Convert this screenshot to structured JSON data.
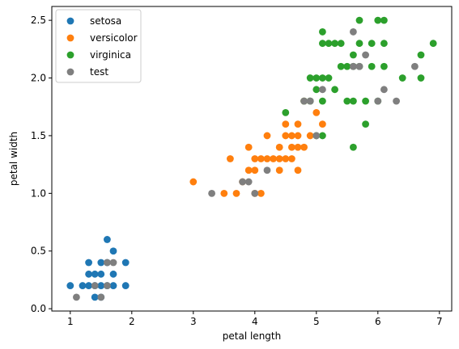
{
  "chart_data": {
    "type": "scatter",
    "title": "",
    "xlabel": "petal length",
    "ylabel": "petal width",
    "xlim": [
      0.7,
      7.2
    ],
    "ylim": [
      -0.02,
      2.62
    ],
    "xticks": [
      1,
      2,
      3,
      4,
      5,
      6,
      7
    ],
    "xtick_labels": [
      "1",
      "2",
      "3",
      "4",
      "5",
      "6",
      "7"
    ],
    "yticks": [
      0.0,
      0.5,
      1.0,
      1.5,
      2.0,
      2.5
    ],
    "ytick_labels": [
      "0.0",
      "0.5",
      "1.0",
      "1.5",
      "2.0",
      "2.5"
    ],
    "grid": false,
    "legend_position": "top-left",
    "series": [
      {
        "name": "setosa",
        "color": "#1f77b4",
        "points": [
          [
            1.0,
            0.2
          ],
          [
            1.2,
            0.2
          ],
          [
            1.3,
            0.2
          ],
          [
            1.3,
            0.3
          ],
          [
            1.3,
            0.4
          ],
          [
            1.4,
            0.1
          ],
          [
            1.4,
            0.2
          ],
          [
            1.4,
            0.3
          ],
          [
            1.5,
            0.1
          ],
          [
            1.5,
            0.2
          ],
          [
            1.5,
            0.3
          ],
          [
            1.5,
            0.4
          ],
          [
            1.6,
            0.2
          ],
          [
            1.6,
            0.4
          ],
          [
            1.6,
            0.6
          ],
          [
            1.7,
            0.2
          ],
          [
            1.7,
            0.3
          ],
          [
            1.7,
            0.5
          ],
          [
            1.9,
            0.2
          ],
          [
            1.9,
            0.4
          ]
        ]
      },
      {
        "name": "versicolor",
        "color": "#ff7f0e",
        "points": [
          [
            3.0,
            1.1
          ],
          [
            3.5,
            1.0
          ],
          [
            3.6,
            1.3
          ],
          [
            3.7,
            1.0
          ],
          [
            3.8,
            1.1
          ],
          [
            3.9,
            1.2
          ],
          [
            3.9,
            1.4
          ],
          [
            4.0,
            1.0
          ],
          [
            4.0,
            1.2
          ],
          [
            4.0,
            1.3
          ],
          [
            4.1,
            1.0
          ],
          [
            4.1,
            1.3
          ],
          [
            4.2,
            1.3
          ],
          [
            4.2,
            1.5
          ],
          [
            4.3,
            1.3
          ],
          [
            4.4,
            1.2
          ],
          [
            4.4,
            1.3
          ],
          [
            4.4,
            1.4
          ],
          [
            4.5,
            1.3
          ],
          [
            4.5,
            1.5
          ],
          [
            4.5,
            1.6
          ],
          [
            4.6,
            1.3
          ],
          [
            4.6,
            1.4
          ],
          [
            4.6,
            1.5
          ],
          [
            4.7,
            1.2
          ],
          [
            4.7,
            1.4
          ],
          [
            4.7,
            1.5
          ],
          [
            4.7,
            1.6
          ],
          [
            4.8,
            1.4
          ],
          [
            4.8,
            1.8
          ],
          [
            4.9,
            1.5
          ],
          [
            5.0,
            1.7
          ],
          [
            5.1,
            1.6
          ]
        ]
      },
      {
        "name": "virginica",
        "color": "#2ca02c",
        "points": [
          [
            4.5,
            1.7
          ],
          [
            4.8,
            1.8
          ],
          [
            4.9,
            1.8
          ],
          [
            4.9,
            2.0
          ],
          [
            5.0,
            1.5
          ],
          [
            5.0,
            1.9
          ],
          [
            5.0,
            2.0
          ],
          [
            5.1,
            1.5
          ],
          [
            5.1,
            1.8
          ],
          [
            5.1,
            2.0
          ],
          [
            5.1,
            2.3
          ],
          [
            5.1,
            2.4
          ],
          [
            5.2,
            2.0
          ],
          [
            5.2,
            2.3
          ],
          [
            5.3,
            1.9
          ],
          [
            5.3,
            2.3
          ],
          [
            5.4,
            2.1
          ],
          [
            5.4,
            2.3
          ],
          [
            5.5,
            1.8
          ],
          [
            5.5,
            2.1
          ],
          [
            5.6,
            1.4
          ],
          [
            5.6,
            1.8
          ],
          [
            5.6,
            2.1
          ],
          [
            5.6,
            2.2
          ],
          [
            5.7,
            2.1
          ],
          [
            5.7,
            2.3
          ],
          [
            5.7,
            2.5
          ],
          [
            5.8,
            1.6
          ],
          [
            5.8,
            1.8
          ],
          [
            5.9,
            2.1
          ],
          [
            5.9,
            2.3
          ],
          [
            6.0,
            1.8
          ],
          [
            6.0,
            2.5
          ],
          [
            6.1,
            2.1
          ],
          [
            6.1,
            2.3
          ],
          [
            6.1,
            2.5
          ],
          [
            6.4,
            2.0
          ],
          [
            6.7,
            2.0
          ],
          [
            6.7,
            2.2
          ],
          [
            6.9,
            2.3
          ]
        ]
      },
      {
        "name": "test",
        "color": "#7f7f7f",
        "points": [
          [
            1.1,
            0.1
          ],
          [
            1.4,
            0.2
          ],
          [
            1.5,
            0.1
          ],
          [
            1.6,
            0.2
          ],
          [
            1.6,
            0.4
          ],
          [
            1.7,
            0.4
          ],
          [
            3.3,
            1.0
          ],
          [
            3.8,
            1.1
          ],
          [
            3.9,
            1.1
          ],
          [
            4.0,
            1.0
          ],
          [
            4.2,
            1.2
          ],
          [
            4.8,
            1.8
          ],
          [
            4.9,
            1.8
          ],
          [
            5.0,
            1.5
          ],
          [
            5.1,
            1.9
          ],
          [
            5.6,
            2.1
          ],
          [
            5.6,
            2.4
          ],
          [
            5.7,
            2.1
          ],
          [
            5.8,
            2.2
          ],
          [
            6.0,
            1.8
          ],
          [
            6.1,
            1.9
          ],
          [
            6.3,
            1.8
          ],
          [
            6.6,
            2.1
          ]
        ]
      }
    ]
  }
}
